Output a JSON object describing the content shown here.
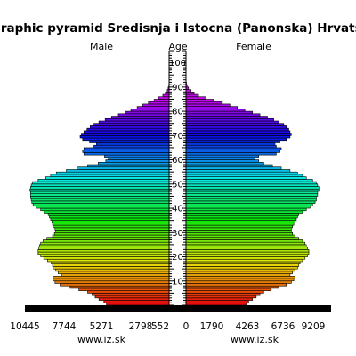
{
  "chart_data": {
    "type": "bar",
    "orientation": "horizontal-back-to-back",
    "title": "Demographic pyramid Sredisnja i Istocna (Panonska) Hrvatska, ye",
    "left_label": "Male",
    "center_label": "Age",
    "right_label": "Female",
    "age_range": [
      0,
      105
    ],
    "age_ticks": [
      10,
      20,
      30,
      40,
      50,
      60,
      70,
      80,
      90,
      100
    ],
    "male_axis_ticks": [
      "10445",
      "7744",
      "5271",
      "2798",
      "552"
    ],
    "female_axis_ticks": [
      "0",
      "1790",
      "4263",
      "6736",
      "9209"
    ],
    "x_max": 12000,
    "source_left": "www.iz.sk",
    "source_right": "www.iz.sk",
    "male": [
      5000,
      5200,
      5600,
      5900,
      6150,
      6500,
      7200,
      7900,
      8700,
      9100,
      9250,
      9250,
      8550,
      8850,
      9050,
      9250,
      9300,
      9400,
      9700,
      10000,
      10250,
      10450,
      10450,
      10400,
      10350,
      10250,
      10050,
      9750,
      9300,
      9150,
      9050,
      9100,
      9250,
      9300,
      9350,
      9450,
      9550,
      9650,
      9950,
      10250,
      10600,
      10850,
      10950,
      11000,
      11050,
      11050,
      11050,
      11100,
      11050,
      11000,
      10900,
      10450,
      9850,
      9450,
      9000,
      8200,
      7350,
      6500,
      5650,
      5050,
      4850,
      5150,
      6800,
      6900,
      6800,
      6000,
      5800,
      6350,
      6900,
      7100,
      7000,
      6800,
      6550,
      6300,
      6000,
      5600,
      5100,
      4600,
      4050,
      3500,
      3050,
      2550,
      2100,
      1650,
      1200,
      850,
      500,
      300,
      150,
      80,
      30,
      10,
      5,
      0,
      0,
      0,
      0,
      0,
      0,
      0,
      0
    ],
    "female": [
      4800,
      5000,
      5300,
      5600,
      5900,
      6200,
      6800,
      7400,
      8000,
      8400,
      8600,
      8700,
      8300,
      8500,
      8700,
      8900,
      9000,
      9100,
      9300,
      9500,
      9700,
      9800,
      9800,
      9700,
      9600,
      9500,
      9300,
      9000,
      8700,
      8500,
      8400,
      8400,
      8500,
      8600,
      8700,
      8800,
      8900,
      9000,
      9300,
      9600,
      9900,
      10100,
      10300,
      10400,
      10400,
      10500,
      10500,
      10600,
      10600,
      10500,
      10400,
      10100,
      9600,
      9300,
      8900,
      8300,
      7600,
      6900,
      6200,
      5800,
      5500,
      5800,
      7200,
      7500,
      7600,
      7200,
      7100,
      7500,
      8000,
      8300,
      8400,
      8300,
      8200,
      8000,
      7800,
      7400,
      7000,
      6500,
      5900,
      5300,
      4700,
      4100,
      3500,
      2900,
      2200,
      1600,
      1000,
      650,
      400,
      200,
      90,
      40,
      15,
      5,
      0,
      0,
      0,
      0,
      0,
      0,
      0
    ]
  }
}
